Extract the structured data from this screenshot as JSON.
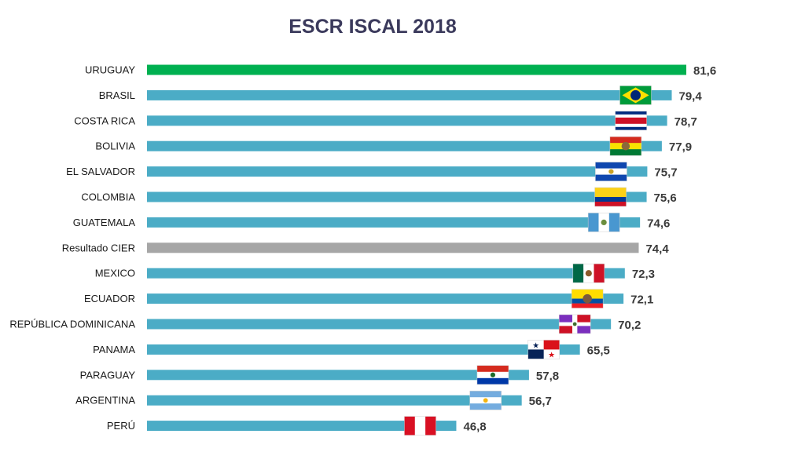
{
  "chart_data": {
    "type": "bar",
    "orientation": "horizontal",
    "title": "ESCR ISCAL 2018",
    "xlabel": "",
    "ylabel": "",
    "xlim": [
      0,
      82
    ],
    "grid": false,
    "legend": "none",
    "categories": [
      "URUGUAY",
      "BRASIL",
      "COSTA RICA",
      "BOLIVIA",
      "EL SALVADOR",
      "COLOMBIA",
      "GUATEMALA",
      "Resultado CIER",
      "MEXICO",
      "ECUADOR",
      "REPÚBLICA DOMINICANA",
      "PANAMA",
      "PARAGUAY",
      "ARGENTINA",
      "PERÚ"
    ],
    "values": [
      81.6,
      79.4,
      78.7,
      77.9,
      75.7,
      75.6,
      74.6,
      74.4,
      72.3,
      72.1,
      70.2,
      65.5,
      57.8,
      56.7,
      46.8
    ],
    "value_labels": [
      "81,6",
      "79,4",
      "78,7",
      "77,9",
      "75,7",
      "75,6",
      "74,6",
      "74,4",
      "72,3",
      "72,1",
      "70,2",
      "65,5",
      "57,8",
      "56,7",
      "46,8"
    ],
    "flags": [
      "",
      "brazil-flag-icon",
      "costa-rica-flag-icon",
      "bolivia-flag-icon",
      "el-salvador-flag-icon",
      "colombia-flag-icon",
      "guatemala-flag-icon",
      "",
      "mexico-flag-icon",
      "ecuador-flag-icon",
      "dominican-republic-flag-icon",
      "panama-flag-icon",
      "paraguay-flag-icon",
      "argentina-flag-icon",
      "peru-flag-icon"
    ],
    "colors": {
      "default": "#4bacc6",
      "highlight": "#00b050",
      "reference": "#a6a6a6"
    },
    "bar_colors": [
      "highlight",
      "default",
      "default",
      "default",
      "default",
      "default",
      "default",
      "reference",
      "default",
      "default",
      "default",
      "default",
      "default",
      "default",
      "default"
    ]
  }
}
